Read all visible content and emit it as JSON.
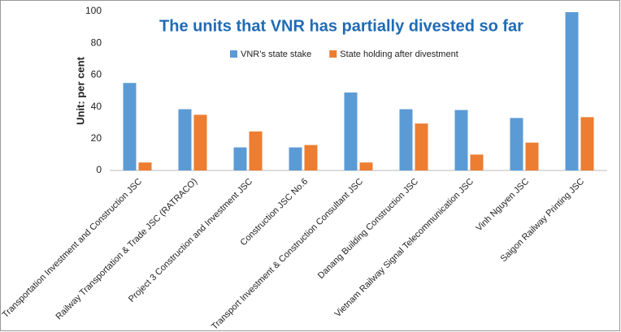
{
  "chart_data": {
    "type": "bar",
    "title": "The units that VNR has partially divested so far",
    "y_label": "Unit: per cent",
    "categories": [
      "Transportation Investment and Construction JSC",
      "Railway Transportation & Trade JSC (RATRACO)",
      "Project 3 Construction and Investment JSC",
      "Construction JSC No.6",
      "Transport Investment & Construction Consultant JSC",
      "Danang Building Construction JSC",
      "Vietnam Railway Signal Telecommunication JSC",
      "Vinh Nguyen JSC",
      "Saigon Railway Printing JSC"
    ],
    "series": [
      {
        "name": "VNR’s state stake",
        "color": "#5b9bd5",
        "values": [
          55,
          38.5,
          14.5,
          14.5,
          49,
          38.5,
          38,
          33,
          99.5
        ]
      },
      {
        "name": "State holding after divestment",
        "color": "#ed7d31",
        "values": [
          5,
          35,
          24.5,
          16,
          5,
          29.5,
          10,
          17.5,
          33.5
        ]
      }
    ],
    "ylim": [
      0,
      100
    ],
    "yticks": [
      0,
      20,
      40,
      60,
      80,
      100
    ],
    "grid": false
  }
}
